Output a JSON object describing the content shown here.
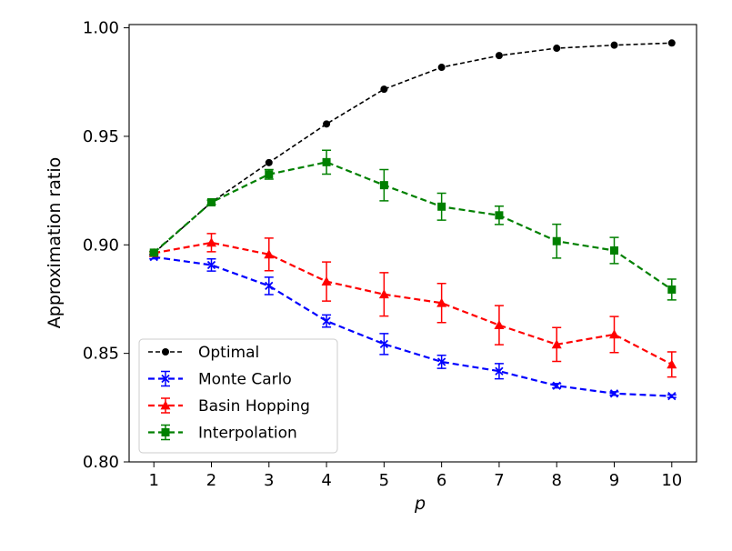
{
  "chart_data": {
    "type": "line",
    "title": "",
    "xlabel": "p",
    "ylabel": "Approximation ratio",
    "x": [
      1,
      2,
      3,
      4,
      5,
      6,
      7,
      8,
      9,
      10
    ],
    "xlim": [
      0.57,
      10.43
    ],
    "ylim": [
      0.8,
      1.0015
    ],
    "xticks": [
      1,
      2,
      3,
      4,
      5,
      6,
      7,
      8,
      9,
      10
    ],
    "yticks": [
      0.8,
      0.85,
      0.9,
      0.95,
      1.0
    ],
    "ytick_labels": [
      "0.80",
      "0.85",
      "0.90",
      "0.95",
      "1.00"
    ],
    "legend_position": "lower-left",
    "series": [
      {
        "name": "Optimal",
        "color": "#000000",
        "marker": "circle",
        "values": [
          0.8962,
          0.9196,
          0.9379,
          0.9557,
          0.9717,
          0.9818,
          0.9872,
          0.9906,
          0.992,
          0.993
        ],
        "errors": null
      },
      {
        "name": "Monte Carlo",
        "color": "#0000ff",
        "marker": "x",
        "values": [
          0.8944,
          0.8907,
          0.8811,
          0.8649,
          0.8543,
          0.8461,
          0.8418,
          0.8351,
          0.8315,
          0.8303
        ],
        "errors": [
          0.0008,
          0.0028,
          0.004,
          0.0028,
          0.0048,
          0.003,
          0.0035,
          0.001,
          0.0008,
          0.0006
        ]
      },
      {
        "name": "Basin Hopping",
        "color": "#ff0000",
        "marker": "triangle",
        "values": [
          0.8962,
          0.901,
          0.8956,
          0.8831,
          0.8772,
          0.8732,
          0.863,
          0.8541,
          0.8587,
          0.8449
        ],
        "errors": [
          0.0005,
          0.0042,
          0.0075,
          0.009,
          0.01,
          0.009,
          0.009,
          0.0078,
          0.0083,
          0.0058
        ]
      },
      {
        "name": "Interpolation",
        "color": "#008000",
        "marker": "square",
        "values": [
          0.8964,
          0.9196,
          0.9325,
          0.9381,
          0.9275,
          0.9176,
          0.9136,
          0.9017,
          0.8974,
          0.8794
        ],
        "errors": [
          0.0006,
          0.001,
          0.0022,
          0.0055,
          0.0072,
          0.0062,
          0.0042,
          0.0078,
          0.006,
          0.0048
        ]
      }
    ]
  }
}
